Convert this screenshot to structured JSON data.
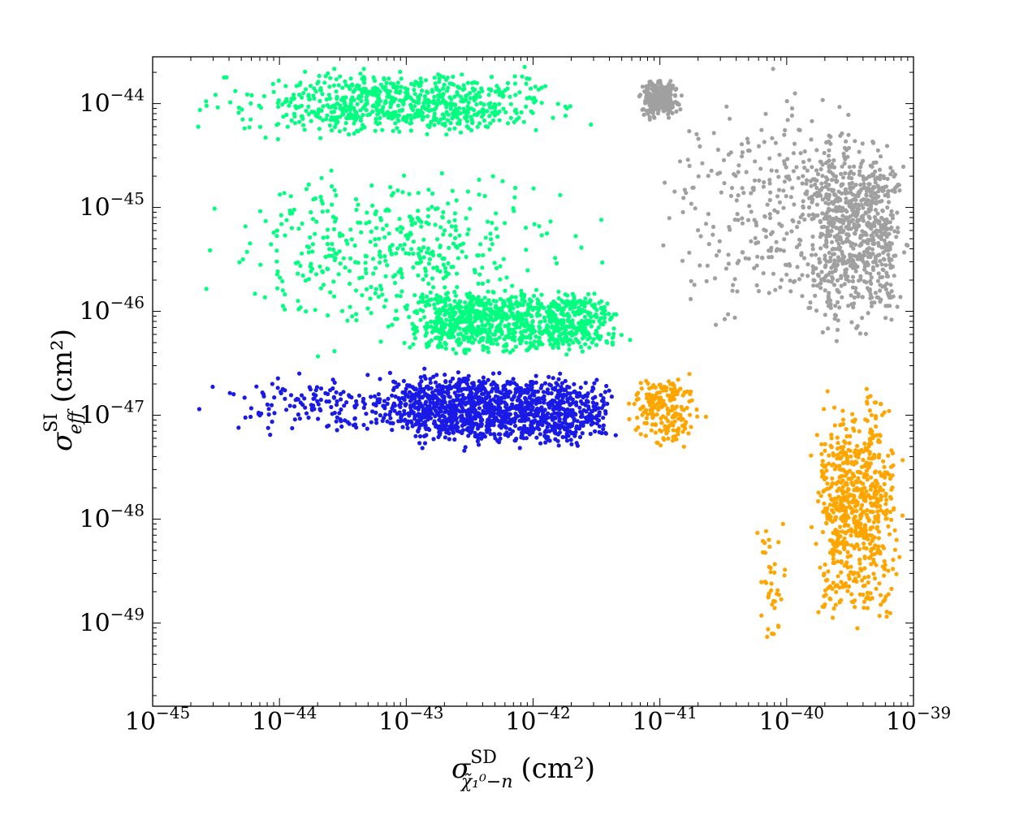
{
  "chart_data": {
    "type": "scatter",
    "xscale": "log",
    "yscale": "log",
    "xlim": [
      1e-45,
      1e-39
    ],
    "ylim": [
      1.58e-50,
      2.82e-44
    ],
    "x_ticks": [
      {
        "base": "10",
        "exp": "−45",
        "value_exp": -45
      },
      {
        "base": "10",
        "exp": "−44",
        "value_exp": -44
      },
      {
        "base": "10",
        "exp": "−43",
        "value_exp": -43
      },
      {
        "base": "10",
        "exp": "−42",
        "value_exp": -42
      },
      {
        "base": "10",
        "exp": "−41",
        "value_exp": -41
      },
      {
        "base": "10",
        "exp": "−40",
        "value_exp": -40
      },
      {
        "base": "10",
        "exp": "−39",
        "value_exp": -39
      }
    ],
    "y_ticks": [
      {
        "base": "10",
        "exp": "−44",
        "value_exp": -44
      },
      {
        "base": "10",
        "exp": "−45",
        "value_exp": -45
      },
      {
        "base": "10",
        "exp": "−46",
        "value_exp": -46
      },
      {
        "base": "10",
        "exp": "−47",
        "value_exp": -47
      },
      {
        "base": "10",
        "exp": "−48",
        "value_exp": -48
      },
      {
        "base": "10",
        "exp": "−49",
        "value_exp": -49
      }
    ],
    "xlabel": {
      "symbol": "σ",
      "sup": "SD",
      "sub": "χ̃₁⁰−n",
      "unit": "(cm²)"
    },
    "ylabel": {
      "symbol": "σ",
      "sup": "SI",
      "sub": "eff",
      "unit": "(cm²)"
    },
    "colors": {
      "green": "#00ff7f",
      "gray": "#a0a0a0",
      "blue": "#1a1ae6",
      "orange": "#ffa500"
    },
    "series": [
      {
        "color": "#00ff7f",
        "clusters": [
          {
            "log_x": [
              -45.0,
              -41.1
            ],
            "log_y": [
              -44.4,
              -43.6
            ],
            "n": 700,
            "bias_x": 0.7
          },
          {
            "log_x": [
              -45.0,
              -41.1
            ],
            "log_y": [
              -46.5,
              -44.4
            ],
            "n": 450,
            "bias_x": 0.6
          },
          {
            "log_x": [
              -43.2,
              -41.1
            ],
            "log_y": [
              -46.5,
              -45.7
            ],
            "n": 900,
            "bias_x": 0.35
          }
        ]
      },
      {
        "color": "#a0a0a0",
        "clusters": [
          {
            "log_x": [
              -41.2,
              -40.8
            ],
            "log_y": [
              -44.2,
              -43.7
            ],
            "n": 250,
            "bias_x": 0.5
          },
          {
            "log_x": [
              -41.2,
              -39.0
            ],
            "log_y": [
              -46.5,
              -43.6
            ],
            "n": 350,
            "bias_x": 0.5
          },
          {
            "log_x": [
              -39.9,
              -39.0
            ],
            "log_y": [
              -46.5,
              -44.0
            ],
            "n": 700,
            "bias_x": 0.35
          }
        ]
      },
      {
        "color": "#1a1ae6",
        "clusters": [
          {
            "log_x": [
              -45.0,
              -41.2
            ],
            "log_y": [
              -47.3,
              -46.5
            ],
            "n": 350,
            "bias_x": 0.5
          },
          {
            "log_x": [
              -43.3,
              -41.2
            ],
            "log_y": [
              -47.4,
              -46.5
            ],
            "n": 1100,
            "bias_x": 0.3
          }
        ]
      },
      {
        "color": "#ffa500",
        "clusters": [
          {
            "log_x": [
              -41.3,
              -40.6
            ],
            "log_y": [
              -47.4,
              -46.5
            ],
            "n": 200,
            "bias_x": 0.5
          },
          {
            "log_x": [
              -39.9,
              -39.0
            ],
            "log_y": [
              -49.3,
              -46.5
            ],
            "n": 700,
            "bias_x": 0.45
          },
          {
            "log_x": [
              -40.3,
              -39.9
            ],
            "log_y": [
              -49.6,
              -47.6
            ],
            "n": 40,
            "bias_x": 0.5
          }
        ]
      }
    ]
  }
}
